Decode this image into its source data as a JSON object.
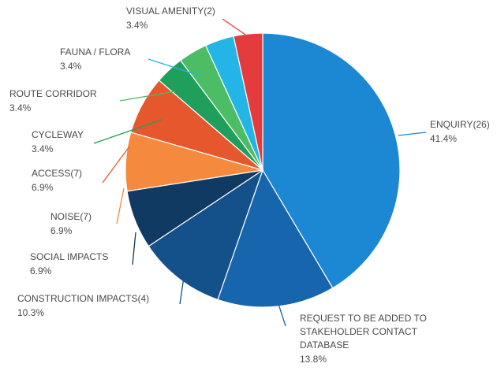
{
  "chart_data": {
    "type": "pie",
    "title": "",
    "slices": [
      {
        "label": "ENQUIRY(26)",
        "percent_text": "41.4%",
        "value": 41.4,
        "color": "#1c87d3"
      },
      {
        "label": "REQUEST TO BE ADDED TO STAKEHOLDER CONTACT DATABASE",
        "percent_text": "13.8%",
        "value": 13.8,
        "color": "#1765ac"
      },
      {
        "label": "CONSTRUCTION IMPACTS(4)",
        "percent_text": "10.3%",
        "value": 10.3,
        "color": "#14508a"
      },
      {
        "label": "SOCIAL IMPACTS",
        "percent_text": "6.9%",
        "value": 6.9,
        "color": "#113a63"
      },
      {
        "label": "NOISE(7)",
        "percent_text": "6.9%",
        "value": 6.9,
        "color": "#f5893d"
      },
      {
        "label": "ACCESS(7)",
        "percent_text": "6.9%",
        "value": 6.9,
        "color": "#e7572e"
      },
      {
        "label": "CYCLEWAY",
        "percent_text": "3.4%",
        "value": 3.4,
        "color": "#1f9e5c"
      },
      {
        "label": "ROUTE CORRIDOR",
        "percent_text": "3.4%",
        "value": 3.4,
        "color": "#4cbd64"
      },
      {
        "label": "FAUNA / FLORA",
        "percent_text": "3.4%",
        "value": 3.4,
        "color": "#23b5e6"
      },
      {
        "label": "VISUAL AMENITY(2)",
        "percent_text": "3.4%",
        "value": 3.4,
        "color": "#e43c3c"
      }
    ],
    "legend": "none"
  }
}
